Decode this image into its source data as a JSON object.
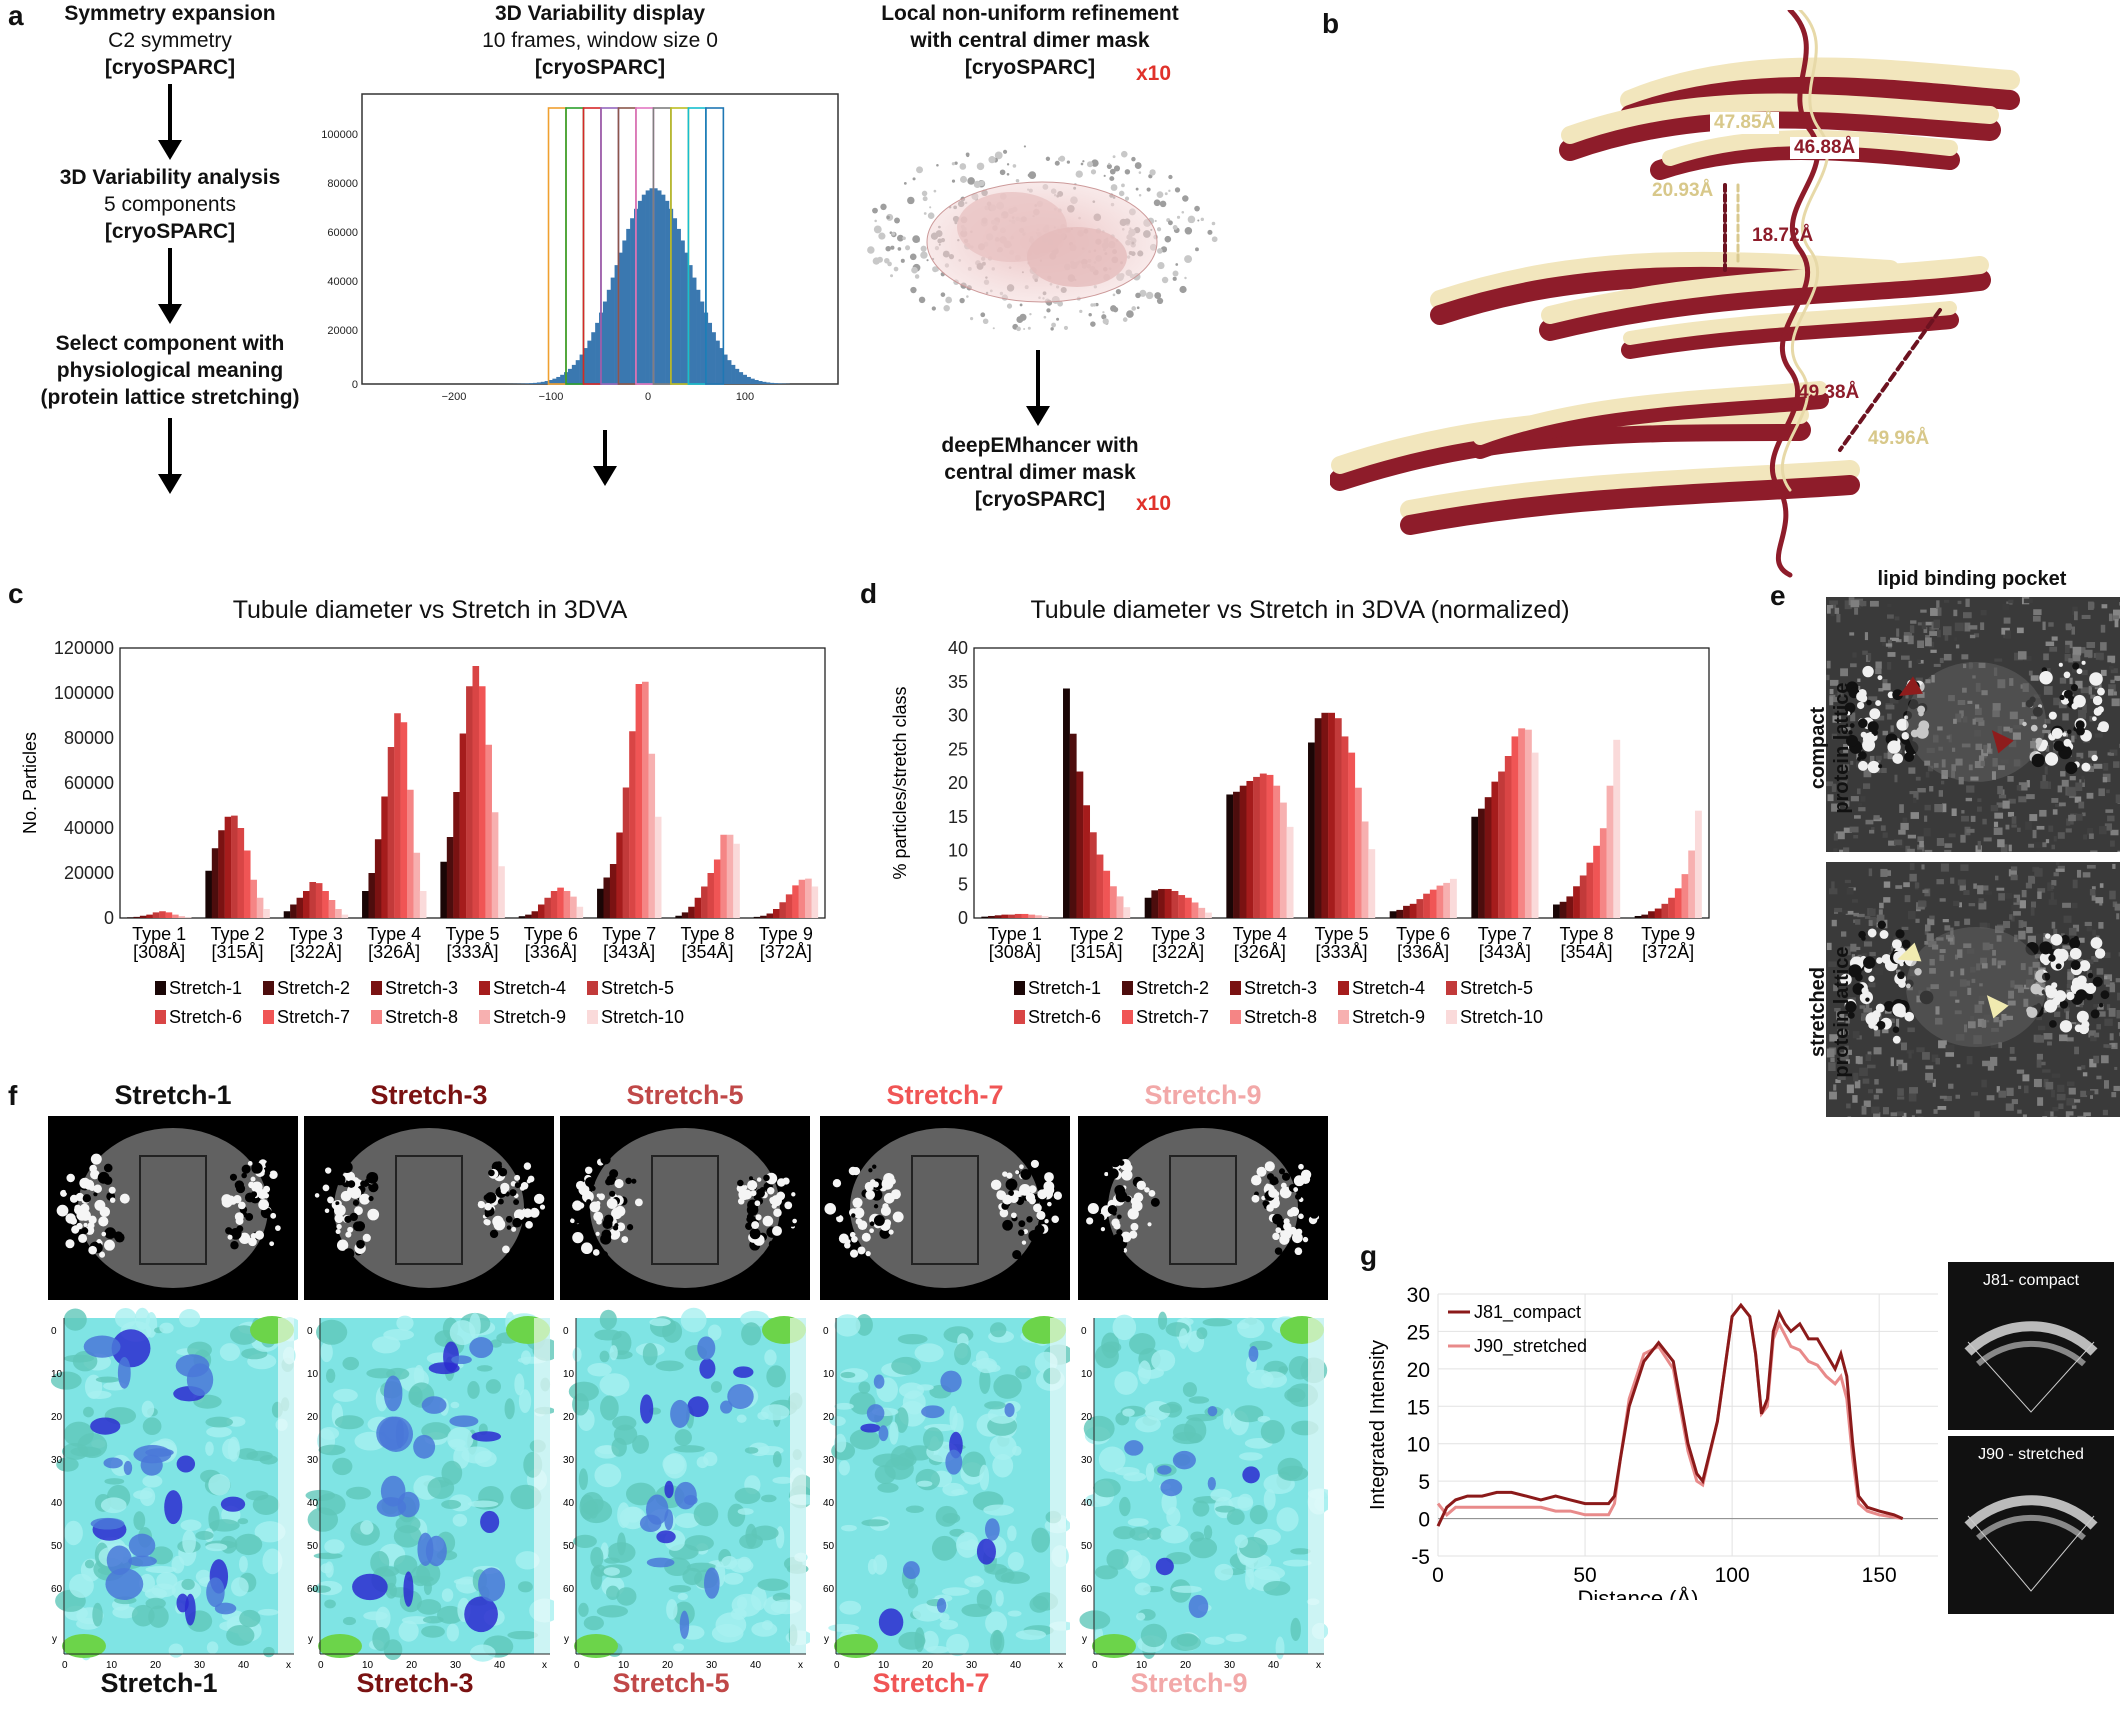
{
  "panels": {
    "a": "a",
    "b": "b",
    "c": "c",
    "d": "d",
    "e": "e",
    "f": "f",
    "g": "g"
  },
  "panel_a": {
    "step1": {
      "title": "Symmetry expansion",
      "sub": "C2 symmetry",
      "tool": "[cryoSPARC]"
    },
    "step2": {
      "title": "3D Variability analysis",
      "sub": "5 components",
      "tool": "[cryoSPARC]"
    },
    "step3": {
      "line1": "Select component with",
      "line2": "physiological meaning",
      "line3": "(protein lattice stretching)"
    },
    "histogram": {
      "title": "3D Variability display",
      "sub": "10 frames, window size 0",
      "tool": "[cryoSPARC]",
      "yticks": [
        "100000",
        "80000",
        "60000",
        "40000",
        "20000",
        "0"
      ],
      "xticks": [
        "−200",
        "−100",
        "0",
        "100"
      ]
    },
    "refine": {
      "title1": "Local non-uniform refinement",
      "title2": "with central dimer mask",
      "tool": "[cryoSPARC]",
      "mult": "x10"
    },
    "deep": {
      "line1": "deepEMhancer with",
      "line2": "central dimer mask",
      "tool": "[cryoSPARC]",
      "mult": "x10"
    }
  },
  "panel_b": {
    "d1": "47.85Å",
    "d2": "46.88Å",
    "d3": "20.93Å",
    "d4": "18.72Å",
    "d5": "49.38Å",
    "d6": "49.96Å"
  },
  "chart_data": [
    {
      "type": "bar",
      "title": "Tubule diameter vs Stretch in 3DVA",
      "ylabel": "No. Particles",
      "ylim": [
        0,
        120000
      ],
      "yticks": [
        "120000",
        "100000",
        "80000",
        "60000",
        "40000",
        "20000",
        "0"
      ],
      "categories": [
        "Type 1\n[308Å]",
        "Type 2\n[315Å]",
        "Type 3\n[322Å]",
        "Type 4\n[326Å]",
        "Type 5\n[333Å]",
        "Type 6\n[336Å]",
        "Type 7\n[343Å]",
        "Type 8\n[354Å]",
        "Type 9\n[372Å]"
      ],
      "cat_line1": [
        "Type 1",
        "Type 2",
        "Type 3",
        "Type 4",
        "Type 5",
        "Type 6",
        "Type 7",
        "Type 8",
        "Type 9"
      ],
      "cat_line2": [
        "[308Å]",
        "[315Å]",
        "[322Å]",
        "[326Å]",
        "[333Å]",
        "[336Å]",
        "[343Å]",
        "[354Å]",
        "[372Å]"
      ],
      "series": [
        {
          "name": "Stretch-1",
          "color": "#1a0606",
          "values": [
            300,
            21000,
            3000,
            12000,
            25000,
            800,
            13000,
            1000,
            500
          ]
        },
        {
          "name": "Stretch-2",
          "color": "#4d0d0d",
          "values": [
            500,
            31000,
            6000,
            20000,
            36000,
            1500,
            18000,
            2500,
            1000
          ]
        },
        {
          "name": "Stretch-3",
          "color": "#7a1212",
          "values": [
            1000,
            39000,
            9000,
            35000,
            56000,
            3000,
            24000,
            5000,
            2000
          ]
        },
        {
          "name": "Stretch-4",
          "color": "#a51c1c",
          "values": [
            1500,
            45000,
            12000,
            54000,
            82000,
            6000,
            38000,
            9000,
            4000
          ]
        },
        {
          "name": "Stretch-5",
          "color": "#c23a3a",
          "values": [
            2500,
            45500,
            16000,
            76000,
            103000,
            9000,
            58000,
            14000,
            7000
          ]
        },
        {
          "name": "Stretch-6",
          "color": "#d94545",
          "values": [
            3000,
            40000,
            15500,
            91000,
            112000,
            12000,
            83000,
            20000,
            10500
          ]
        },
        {
          "name": "Stretch-7",
          "color": "#f05555",
          "values": [
            2500,
            30000,
            12000,
            87000,
            103000,
            13500,
            104000,
            26000,
            14500
          ]
        },
        {
          "name": "Stretch-8",
          "color": "#f58585",
          "values": [
            1500,
            17000,
            8000,
            57000,
            77000,
            12000,
            105000,
            37000,
            17000
          ]
        },
        {
          "name": "Stretch-9",
          "color": "#f7b0b0",
          "values": [
            800,
            9000,
            4000,
            29000,
            47000,
            9500,
            73000,
            37000,
            17500
          ]
        },
        {
          "name": "Stretch-10",
          "color": "#fadada",
          "values": [
            300,
            4000,
            1500,
            12000,
            23000,
            5000,
            45000,
            33000,
            14000
          ]
        }
      ],
      "legend": "bottom"
    },
    {
      "type": "bar",
      "title": "Tubule diameter vs Stretch in 3DVA (normalized)",
      "ylabel": "% particles/stretch class",
      "ylim": [
        0,
        40
      ],
      "yticks": [
        "40",
        "35",
        "30",
        "25",
        "20",
        "15",
        "10",
        "5",
        "0"
      ],
      "cat_line1": [
        "Type 1",
        "Type 2",
        "Type 3",
        "Type 4",
        "Type 5",
        "Type 6",
        "Type 7",
        "Type 8",
        "Type 9"
      ],
      "cat_line2": [
        "[308Å]",
        "[315Å]",
        "[322Å]",
        "[326Å]",
        "[333Å]",
        "[336Å]",
        "[343Å]",
        "[354Å]",
        "[372Å]"
      ],
      "series": [
        {
          "name": "Stretch-1",
          "color": "#1a0606",
          "values": [
            0.2,
            34,
            3,
            18.3,
            26,
            1,
            15,
            2,
            0.3
          ]
        },
        {
          "name": "Stretch-2",
          "color": "#4d0d0d",
          "values": [
            0.3,
            27.3,
            4.1,
            18.7,
            29.6,
            1.2,
            16.2,
            2.4,
            0.5
          ]
        },
        {
          "name": "Stretch-3",
          "color": "#7a1212",
          "values": [
            0.4,
            21.7,
            4.3,
            19.6,
            30.4,
            1.8,
            17.9,
            3.2,
            1
          ]
        },
        {
          "name": "Stretch-4",
          "color": "#a51c1c",
          "values": [
            0.5,
            16.7,
            4.3,
            20.3,
            30.4,
            2.1,
            20.2,
            4.7,
            1.4
          ]
        },
        {
          "name": "Stretch-5",
          "color": "#c23a3a",
          "values": [
            0.5,
            12.7,
            4,
            20.9,
            29.6,
            2.8,
            21.7,
            6.3,
            2.1
          ]
        },
        {
          "name": "Stretch-6",
          "color": "#d94545",
          "values": [
            0.6,
            9.4,
            3.4,
            21.4,
            26.9,
            3.6,
            24,
            8.2,
            3
          ]
        },
        {
          "name": "Stretch-7",
          "color": "#f05555",
          "values": [
            0.6,
            7,
            3,
            21.2,
            24.5,
            4.2,
            26.9,
            10.7,
            4.4
          ]
        },
        {
          "name": "Stretch-8",
          "color": "#f58585",
          "values": [
            0.5,
            4.7,
            2.3,
            19.6,
            19.3,
            4.8,
            28.1,
            13.3,
            6.5
          ]
        },
        {
          "name": "Stretch-9",
          "color": "#f7b0b0",
          "values": [
            0.4,
            3.2,
            1.5,
            17.1,
            14.3,
            5.2,
            27.9,
            19.6,
            10
          ]
        },
        {
          "name": "Stretch-10",
          "color": "#fadada",
          "values": [
            0.3,
            1.6,
            0.8,
            13.5,
            10.2,
            5.8,
            24.5,
            26.4,
            15.9
          ]
        }
      ],
      "legend": "bottom"
    },
    {
      "type": "line",
      "ylabel": "Integrated Intensity",
      "xlabel": "Distance (Å)",
      "ylim": [
        -5,
        30
      ],
      "xlim": [
        0,
        170
      ],
      "yticks": [
        "30",
        "25",
        "20",
        "15",
        "10",
        "5",
        "0",
        "-5"
      ],
      "xticks": [
        "0",
        "50",
        "100",
        "150"
      ],
      "series": [
        {
          "name": "J81_compact",
          "color": "#8b1a1a",
          "x": [
            0,
            3,
            6,
            10,
            15,
            20,
            25,
            30,
            35,
            40,
            45,
            50,
            55,
            58,
            60,
            62,
            65,
            70,
            75,
            80,
            85,
            88,
            90,
            95,
            100,
            103,
            106,
            108,
            110,
            112,
            114,
            116,
            118,
            120,
            123,
            126,
            129,
            132,
            135,
            137,
            139,
            141,
            143,
            146,
            150,
            155,
            158
          ],
          "y": [
            -1,
            1.5,
            2.5,
            3,
            3,
            3.5,
            3.5,
            3,
            2.5,
            3,
            2.5,
            2,
            2,
            2,
            3,
            8,
            15,
            21,
            23.5,
            21,
            10,
            6,
            5,
            13,
            27,
            28.5,
            27,
            22,
            14,
            16,
            25,
            27.5,
            26,
            25,
            26,
            24,
            24,
            22,
            20,
            22,
            19,
            10,
            3,
            1.5,
            1,
            0.5,
            0
          ],
          "values": [
            -1,
            1.5,
            2.5,
            3,
            3,
            3.5,
            3.5,
            3,
            2.5,
            3,
            2.5,
            2,
            2,
            2,
            3,
            8,
            15,
            21,
            23.5,
            21,
            10,
            6,
            5,
            13,
            27,
            28.5,
            27,
            22,
            14,
            16,
            25,
            27.5,
            26,
            25,
            26,
            24,
            24,
            22,
            20,
            22,
            19,
            10,
            3,
            1.5,
            1,
            0.5,
            0
          ]
        },
        {
          "name": "J90_stretched",
          "color": "#e88a8a",
          "x": [
            0,
            3,
            6,
            10,
            15,
            20,
            25,
            30,
            35,
            40,
            45,
            50,
            55,
            58,
            60,
            62,
            65,
            70,
            75,
            80,
            85,
            88,
            90,
            95,
            100,
            103,
            106,
            108,
            110,
            112,
            114,
            116,
            118,
            120,
            123,
            126,
            129,
            132,
            135,
            137,
            139,
            141,
            143,
            146,
            150,
            155,
            158
          ],
          "y": [
            2,
            0.5,
            1.5,
            1.5,
            1.5,
            1.5,
            1.5,
            1.5,
            1.5,
            1,
            1,
            0.5,
            0.5,
            0.5,
            2,
            8,
            16,
            22,
            23,
            20,
            9,
            5,
            4.5,
            13,
            27,
            28.5,
            27,
            22,
            14,
            15,
            24,
            26,
            24.5,
            23,
            22.5,
            21,
            20.5,
            19,
            18,
            19,
            16,
            8,
            2,
            1,
            0.5,
            0.2,
            0
          ],
          "values": [
            2,
            0.5,
            1.5,
            1.5,
            1.5,
            1.5,
            1.5,
            1.5,
            1.5,
            1,
            1,
            0.5,
            0.5,
            0.5,
            2,
            8,
            16,
            22,
            23,
            20,
            9,
            5,
            4.5,
            13,
            27,
            28.5,
            27,
            22,
            14,
            15,
            24,
            26,
            24.5,
            23,
            22.5,
            21,
            20.5,
            19,
            18,
            19,
            16,
            8,
            2,
            1,
            0.5,
            0.2,
            0
          ]
        }
      ],
      "legend": "top-left"
    }
  ],
  "panel_e": {
    "title": "lipid binding pocket",
    "top_label1": "compact",
    "top_label2": "protein lattice",
    "bottom_label1": "stretched",
    "bottom_label2": "protein lattice"
  },
  "panel_f": {
    "items": [
      {
        "name": "Stretch-1",
        "color": "#111111"
      },
      {
        "name": "Stretch-3",
        "color": "#7a1212"
      },
      {
        "name": "Stretch-5",
        "color": "#c04848"
      },
      {
        "name": "Stretch-7",
        "color": "#f05555"
      },
      {
        "name": "Stretch-9",
        "color": "#f2a8a8"
      }
    ],
    "yticks": [
      "0",
      "10",
      "20",
      "30",
      "40",
      "50",
      "60"
    ],
    "xticks": [
      "0",
      "10",
      "20",
      "30",
      "40"
    ],
    "axis_x": "x",
    "axis_y": "y"
  },
  "panel_g": {
    "thumb1": "J81- compact",
    "thumb2": "J90 - stretched"
  }
}
